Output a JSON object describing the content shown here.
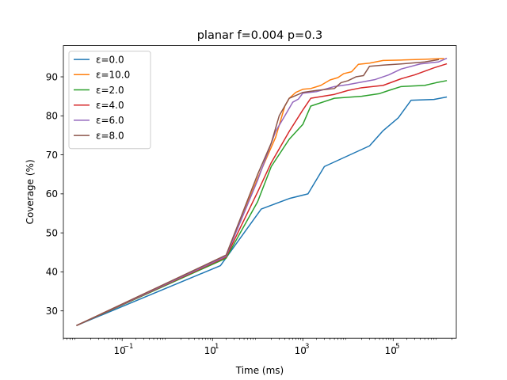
{
  "chart_data": {
    "type": "line",
    "title": "planar f=0.004 p=0.3",
    "xlabel": "Time (ms)",
    "ylabel": "Coverage (%)",
    "xscale": "log",
    "xlim": [
      0.005,
      2500000
    ],
    "ylim": [
      23,
      98
    ],
    "grid": false,
    "legend_position": "top-left",
    "xticks": [
      {
        "value": 0.1,
        "base": "10",
        "exp": "−1"
      },
      {
        "value": 10,
        "base": "10",
        "exp": "1"
      },
      {
        "value": 1000,
        "base": "10",
        "exp": "3"
      },
      {
        "value": 100000,
        "base": "10",
        "exp": "5"
      }
    ],
    "yticks": [
      30,
      40,
      50,
      60,
      70,
      80,
      90
    ],
    "series": [
      {
        "name": "ε=0.0",
        "color": "#1f77b4",
        "x": [
          0.01,
          15,
          120,
          500,
          1300,
          3000,
          30000,
          60000,
          130000,
          250000,
          800000,
          1500000
        ],
        "y": [
          26.3,
          41.6,
          56.1,
          58.8,
          60.0,
          67.0,
          72.3,
          76.2,
          79.5,
          84.0,
          84.2,
          84.8
        ]
      },
      {
        "name": "ε=10.0",
        "color": "#ff7f0e",
        "x": [
          0.01,
          20,
          100,
          250,
          400,
          500,
          700,
          1000,
          1500,
          2500,
          4000,
          6000,
          8000,
          12000,
          17000,
          30000,
          60000,
          150000,
          500000,
          1300000
        ],
        "y": [
          26.3,
          44.2,
          64.0,
          74.5,
          82.5,
          84.5,
          86.0,
          86.8,
          87.0,
          87.8,
          89.2,
          89.8,
          90.8,
          91.3,
          93.2,
          93.5,
          94.2,
          94.3,
          94.5,
          94.7
        ]
      },
      {
        "name": "ε=2.0",
        "color": "#2ca02c",
        "x": [
          0.01,
          20,
          100,
          200,
          500,
          1000,
          1500,
          5000,
          20000,
          50000,
          80000,
          150000,
          500000,
          900000,
          1500000
        ],
        "y": [
          26.3,
          43.5,
          58.0,
          67.0,
          74.0,
          77.8,
          82.5,
          84.5,
          85.0,
          85.7,
          86.5,
          87.5,
          87.8,
          88.5,
          89.0
        ]
      },
      {
        "name": "ε=4.0",
        "color": "#d62728",
        "x": [
          0.01,
          20,
          100,
          200,
          500,
          1000,
          1500,
          5000,
          10000,
          20000,
          60000,
          150000,
          300000,
          800000,
          1500000
        ],
        "y": [
          26.3,
          43.8,
          60.5,
          68.0,
          76.0,
          81.5,
          84.5,
          85.5,
          86.5,
          87.2,
          87.8,
          89.5,
          90.5,
          92.3,
          93.3
        ]
      },
      {
        "name": "ε=6.0",
        "color": "#9467bd",
        "x": [
          0.01,
          20,
          100,
          250,
          400,
          600,
          800,
          1000,
          2000,
          5000,
          10000,
          40000,
          80000,
          150000,
          400000,
          1000000,
          1500000
        ],
        "y": [
          26.3,
          44.0,
          63.5,
          76.0,
          80.0,
          83.5,
          84.3,
          85.8,
          86.2,
          87.5,
          88.0,
          89.3,
          90.5,
          92.0,
          93.3,
          93.8,
          94.7
        ]
      },
      {
        "name": "ε=8.0",
        "color": "#8c564b",
        "x": [
          0.01,
          20,
          100,
          200,
          300,
          500,
          800,
          1000,
          2000,
          5000,
          7000,
          10000,
          15000,
          22000,
          30000,
          60000,
          150000,
          500000,
          1000000
        ],
        "y": [
          26.3,
          44.3,
          65.0,
          73.0,
          80.0,
          84.5,
          85.5,
          86.0,
          86.5,
          87.0,
          88.5,
          89.0,
          90.0,
          90.3,
          92.7,
          93.0,
          93.3,
          93.8,
          94.4
        ]
      }
    ]
  }
}
